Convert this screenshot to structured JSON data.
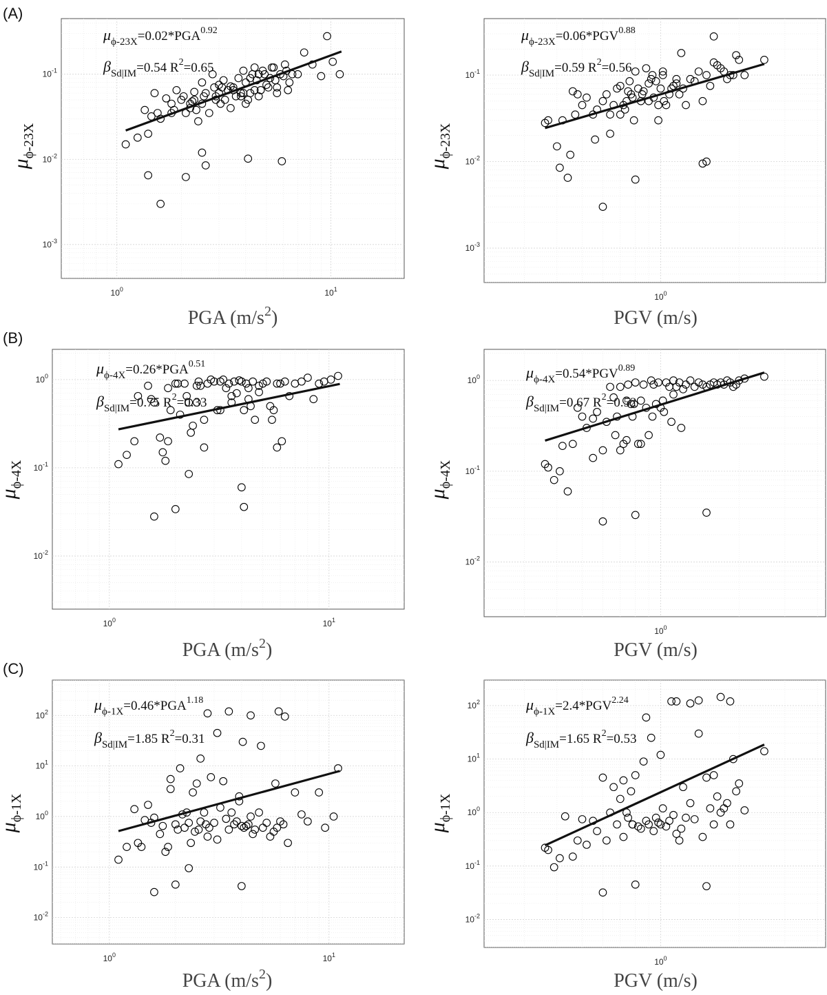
{
  "chart_data": [
    {
      "id": "A-PGA",
      "panel_label": "(A)",
      "type": "scatter",
      "xlabel_main": "PGA (m/s",
      "xlabel_sup": "2",
      "xlabel_tail": ")",
      "ylabel_mu": "μ",
      "ylabel_sub": "ϕ-23X",
      "xscale": "log",
      "yscale": "log",
      "xlim": [
        0.55,
        22
      ],
      "ylim": [
        0.0004,
        0.45
      ],
      "xticks": [
        1,
        10
      ],
      "yticks": [
        0.001,
        0.01,
        0.1
      ],
      "grid": true,
      "eq_lhs": "μ",
      "eq_lhs_sub": "ϕ-23X",
      "eq_rhs": "=0.02*PGA",
      "eq_rhs_sup": "0.92",
      "stat_beta": "β",
      "stat_beta_sub": "Sd|IM",
      "stat_beta_val": "=0.54",
      "stat_r": "R",
      "stat_r_sup": "2",
      "stat_r_val": "=0.65",
      "fit": {
        "coef": 0.02,
        "exp": 0.92,
        "x_range": [
          1.1,
          11.2
        ]
      },
      "x": [
        1.1,
        1.25,
        1.35,
        1.4,
        1.45,
        1.5,
        1.55,
        1.6,
        1.7,
        1.8,
        1.85,
        1.9,
        2.0,
        2.05,
        2.1,
        2.2,
        2.25,
        2.3,
        2.35,
        2.4,
        2.5,
        2.5,
        2.55,
        2.6,
        2.7,
        2.8,
        2.85,
        2.9,
        3.0,
        3.05,
        3.1,
        3.15,
        3.2,
        3.3,
        3.4,
        3.5,
        3.6,
        3.7,
        3.8,
        3.9,
        4.0,
        4.0,
        4.1,
        4.2,
        4.3,
        4.4,
        4.5,
        4.6,
        4.7,
        4.8,
        5.0,
        5.2,
        5.4,
        5.6,
        5.8,
        6.0,
        6.2,
        6.4,
        6.6,
        7.0,
        7.5,
        8.2,
        9.0,
        9.6,
        10.2,
        11.0,
        1.4,
        2.1,
        2.5,
        4.1,
        5.9,
        1.6,
        2.6,
        3.4,
        4.4,
        5.3,
        6.1,
        2.2,
        3.8,
        4.9,
        1.8,
        3.0,
        5.6,
        2.9,
        3.5,
        4.2,
        5.5,
        6.3,
        2.3,
        3.9,
        4.6,
        5.1
      ],
      "y": [
        0.015,
        0.018,
        0.038,
        0.02,
        0.032,
        0.06,
        0.035,
        0.03,
        0.052,
        0.045,
        0.038,
        0.065,
        0.05,
        0.055,
        0.035,
        0.045,
        0.048,
        0.062,
        0.038,
        0.028,
        0.08,
        0.045,
        0.055,
        0.06,
        0.035,
        0.1,
        0.07,
        0.055,
        0.06,
        0.045,
        0.07,
        0.085,
        0.05,
        0.065,
        0.072,
        0.07,
        0.055,
        0.09,
        0.06,
        0.11,
        0.08,
        0.045,
        0.05,
        0.06,
        0.1,
        0.12,
        0.085,
        0.1,
        0.065,
        0.11,
        0.075,
        0.09,
        0.12,
        0.07,
        0.1,
        0.095,
        0.11,
        0.08,
        0.1,
        0.1,
        0.18,
        0.13,
        0.095,
        0.28,
        0.14,
        0.1,
        0.0065,
        0.0062,
        0.012,
        0.0102,
        0.0095,
        0.003,
        0.0085,
        0.04,
        0.065,
        0.12,
        0.13,
        0.04,
        0.055,
        0.1,
        0.035,
        0.075,
        0.06,
        0.05,
        0.065,
        0.09,
        0.085,
        0.065,
        0.05,
        0.06,
        0.055,
        0.07
      ]
    },
    {
      "id": "A-PGV",
      "panel_label": "",
      "type": "scatter",
      "xlabel_main": "PGV (m/s)",
      "xlabel_sup": "",
      "xlabel_tail": "",
      "ylabel_mu": "μ",
      "ylabel_sub": "ϕ-23X",
      "xscale": "log",
      "yscale": "log",
      "xlim": [
        0.21,
        4.3
      ],
      "ylim": [
        0.0004,
        0.45
      ],
      "xticks": [
        1
      ],
      "yticks": [
        0.001,
        0.01,
        0.1
      ],
      "grid": true,
      "eq_lhs": "μ",
      "eq_lhs_sub": "ϕ-23X",
      "eq_rhs": "=0.06*PGV",
      "eq_rhs_sup": "0.88",
      "stat_beta": "β",
      "stat_beta_sub": "Sd|IM",
      "stat_beta_val": "=0.59",
      "stat_r": "R",
      "stat_r_sup": "2",
      "stat_r_val": "=0.56",
      "fit": {
        "coef": 0.06,
        "exp": 0.88,
        "x_range": [
          0.36,
          2.5
        ]
      },
      "x": [
        0.36,
        0.37,
        0.4,
        0.42,
        0.45,
        0.46,
        0.48,
        0.5,
        0.52,
        0.55,
        0.57,
        0.6,
        0.62,
        0.64,
        0.66,
        0.68,
        0.7,
        0.72,
        0.74,
        0.75,
        0.77,
        0.78,
        0.8,
        0.82,
        0.84,
        0.86,
        0.88,
        0.9,
        0.92,
        0.94,
        0.96,
        0.98,
        1.0,
        1.02,
        1.05,
        1.08,
        1.1,
        1.12,
        1.15,
        1.18,
        1.2,
        1.25,
        1.3,
        1.35,
        1.4,
        1.45,
        1.5,
        1.55,
        1.6,
        1.65,
        1.7,
        1.75,
        1.8,
        1.85,
        1.9,
        1.95,
        2.0,
        2.1,
        2.5,
        0.41,
        0.44,
        0.56,
        0.6,
        0.64,
        0.8,
        1.45,
        1.5,
        0.47,
        0.7,
        0.76,
        0.85,
        0.93,
        1.03,
        1.22,
        1.6,
        1.02,
        0.9,
        0.73,
        0.79,
        1.15,
        0.98
      ],
      "y": [
        0.028,
        0.03,
        0.015,
        0.03,
        0.012,
        0.065,
        0.06,
        0.045,
        0.055,
        0.035,
        0.04,
        0.05,
        0.06,
        0.035,
        0.045,
        0.07,
        0.075,
        0.045,
        0.05,
        0.065,
        0.06,
        0.055,
        0.11,
        0.07,
        0.05,
        0.065,
        0.12,
        0.08,
        0.09,
        0.055,
        0.085,
        0.03,
        0.07,
        0.1,
        0.045,
        0.06,
        0.07,
        0.075,
        0.08,
        0.06,
        0.18,
        0.045,
        0.09,
        0.085,
        0.11,
        0.05,
        0.1,
        0.075,
        0.28,
        0.13,
        0.12,
        0.11,
        0.09,
        0.1,
        0.1,
        0.17,
        0.15,
        0.1,
        0.15,
        0.0085,
        0.0065,
        0.018,
        0.003,
        0.021,
        0.0062,
        0.0095,
        0.01,
        0.035,
        0.035,
        0.085,
        0.06,
        0.1,
        0.05,
        0.07,
        0.14,
        0.11,
        0.05,
        0.04,
        0.03,
        0.09,
        0.045
      ]
    },
    {
      "id": "B-PGA",
      "panel_label": "(B)",
      "type": "scatter",
      "xlabel_main": "PGA (m/s",
      "xlabel_sup": "2",
      "xlabel_tail": ")",
      "ylabel_mu": "μ",
      "ylabel_sub": "ϕ-4X",
      "xscale": "log",
      "yscale": "log",
      "xlim": [
        0.55,
        22
      ],
      "ylim": [
        0.0025,
        2.2
      ],
      "xticks": [
        1,
        10
      ],
      "yticks": [
        0.01,
        0.1,
        1
      ],
      "grid": true,
      "eq_lhs": "μ",
      "eq_lhs_sub": "ϕ-4X",
      "eq_rhs": "=0.26*PGA",
      "eq_rhs_sup": "0.51",
      "stat_beta": "β",
      "stat_beta_sub": "Sd|IM",
      "stat_beta_val": "=0.75",
      "stat_r": "R",
      "stat_r_sup": "2",
      "stat_r_val": "=0.33",
      "fit": {
        "coef": 0.26,
        "exp": 0.51,
        "x_range": [
          1.1,
          11.2
        ]
      },
      "x": [
        1.1,
        1.2,
        1.3,
        1.35,
        1.5,
        1.55,
        1.6,
        1.7,
        1.75,
        1.8,
        1.85,
        1.9,
        2.0,
        2.05,
        2.1,
        2.2,
        2.25,
        2.3,
        2.35,
        2.4,
        2.5,
        2.55,
        2.6,
        2.7,
        2.8,
        2.9,
        3.0,
        3.1,
        3.2,
        3.3,
        3.4,
        3.5,
        3.6,
        3.7,
        3.8,
        3.9,
        4.0,
        4.1,
        4.2,
        4.3,
        4.4,
        4.5,
        4.6,
        4.8,
        5.0,
        5.2,
        5.4,
        5.6,
        5.8,
        6.0,
        6.3,
        6.6,
        7.0,
        7.5,
        8.0,
        8.5,
        9.0,
        9.5,
        10.2,
        11.0,
        1.6,
        2.0,
        4.0,
        4.1,
        2.3,
        1.85,
        2.7,
        3.6,
        4.3,
        5.5,
        6.1,
        3.2,
        4.8,
        2.5,
        5.8
      ],
      "y": [
        0.11,
        0.14,
        0.2,
        0.65,
        0.85,
        0.6,
        0.55,
        0.22,
        0.15,
        0.12,
        0.8,
        0.45,
        0.9,
        0.9,
        0.4,
        0.9,
        0.65,
        0.55,
        0.25,
        0.3,
        0.85,
        0.95,
        0.85,
        0.35,
        0.9,
        1.0,
        0.95,
        0.45,
        0.95,
        1.0,
        0.8,
        0.9,
        0.55,
        0.95,
        0.7,
        0.98,
        0.95,
        0.45,
        0.9,
        0.6,
        0.5,
        0.95,
        0.35,
        0.85,
        0.9,
        0.95,
        0.5,
        0.45,
        0.9,
        0.9,
        0.95,
        0.65,
        0.9,
        0.95,
        1.05,
        0.6,
        0.9,
        0.95,
        1.0,
        1.1,
        0.028,
        0.034,
        0.06,
        0.036,
        0.085,
        0.2,
        0.17,
        0.65,
        0.8,
        0.35,
        0.2,
        0.45,
        0.72,
        0.55,
        0.17
      ]
    },
    {
      "id": "B-PGV",
      "panel_label": "",
      "type": "scatter",
      "xlabel_main": "PGV (m/s)",
      "xlabel_sup": "",
      "xlabel_tail": "",
      "ylabel_mu": "μ",
      "ylabel_sub": "ϕ-4X",
      "xscale": "log",
      "yscale": "log",
      "xlim": [
        0.21,
        4.3
      ],
      "ylim": [
        0.0025,
        2.2
      ],
      "xticks": [
        1
      ],
      "yticks": [
        0.01,
        0.1,
        1
      ],
      "grid": true,
      "eq_lhs": "μ",
      "eq_lhs_sub": "ϕ-4X",
      "eq_rhs": "=0.54*PGV",
      "eq_rhs_sup": "0.89",
      "stat_beta": "β",
      "stat_beta_sub": "Sd|IM",
      "stat_beta_val": "=0.67",
      "stat_r": "R",
      "stat_r_sup": "2",
      "stat_r_val": "=0.52",
      "fit": {
        "coef": 0.54,
        "exp": 0.89,
        "x_range": [
          0.36,
          2.5
        ]
      },
      "x": [
        0.36,
        0.37,
        0.39,
        0.41,
        0.44,
        0.46,
        0.48,
        0.5,
        0.52,
        0.55,
        0.57,
        0.6,
        0.62,
        0.64,
        0.66,
        0.68,
        0.7,
        0.72,
        0.74,
        0.75,
        0.77,
        0.78,
        0.8,
        0.82,
        0.84,
        0.86,
        0.88,
        0.9,
        0.92,
        0.94,
        0.96,
        0.98,
        1.0,
        1.02,
        1.05,
        1.08,
        1.1,
        1.12,
        1.15,
        1.18,
        1.2,
        1.25,
        1.3,
        1.35,
        1.4,
        1.45,
        1.5,
        1.55,
        1.6,
        1.65,
        1.7,
        1.75,
        1.8,
        1.85,
        1.9,
        1.95,
        2.0,
        2.1,
        2.5,
        0.42,
        0.6,
        0.8,
        1.5,
        0.7,
        0.74,
        0.84,
        0.93,
        1.03,
        1.22,
        0.55,
        0.67,
        0.79,
        1.12
      ],
      "y": [
        0.12,
        0.11,
        0.08,
        0.1,
        0.06,
        0.2,
        0.5,
        0.4,
        0.3,
        0.14,
        0.45,
        0.17,
        0.35,
        0.85,
        0.65,
        0.4,
        0.85,
        0.2,
        0.6,
        0.9,
        0.55,
        0.4,
        0.95,
        0.2,
        0.6,
        0.9,
        0.5,
        0.25,
        1.0,
        0.9,
        0.55,
        0.95,
        0.5,
        0.6,
        0.95,
        0.85,
        0.35,
        1.0,
        0.85,
        0.95,
        0.3,
        0.9,
        1.0,
        0.85,
        0.95,
        0.9,
        0.85,
        0.9,
        0.95,
        0.9,
        0.95,
        0.9,
        1.0,
        0.95,
        0.85,
        0.9,
        1.0,
        1.05,
        1.1,
        0.19,
        0.028,
        0.033,
        0.035,
        0.17,
        0.22,
        0.2,
        0.4,
        0.45,
        0.8,
        0.38,
        0.25,
        0.55,
        0.7
      ]
    },
    {
      "id": "C-PGA",
      "panel_label": "(C)",
      "type": "scatter",
      "xlabel_main": "PGA (m/s",
      "xlabel_sup": "2",
      "xlabel_tail": ")",
      "ylabel_mu": "μ",
      "ylabel_sub": "ϕ-1X",
      "xscale": "log",
      "yscale": "log",
      "xlim": [
        0.55,
        22
      ],
      "ylim": [
        0.003,
        500
      ],
      "xticks": [
        1,
        10
      ],
      "yticks": [
        0.01,
        0.1,
        1,
        10,
        100
      ],
      "grid": true,
      "eq_lhs": "μ",
      "eq_lhs_sub": "ϕ-1X",
      "eq_rhs": "=0.46*PGA",
      "eq_rhs_sup": "1.18",
      "stat_beta": "β",
      "stat_beta_sub": "Sd|IM",
      "stat_beta_val": "=1.85",
      "stat_r": "R",
      "stat_r_sup": "2",
      "stat_r_val": "=0.31",
      "fit": {
        "coef": 0.46,
        "exp": 1.18,
        "x_range": [
          1.1,
          11.2
        ]
      },
      "x": [
        1.1,
        1.2,
        1.3,
        1.35,
        1.4,
        1.45,
        1.5,
        1.55,
        1.6,
        1.7,
        1.75,
        1.8,
        1.85,
        1.9,
        2.0,
        2.05,
        2.1,
        2.15,
        2.2,
        2.25,
        2.3,
        2.35,
        2.4,
        2.45,
        2.5,
        2.55,
        2.6,
        2.7,
        2.75,
        2.8,
        2.85,
        2.9,
        3.0,
        3.1,
        3.2,
        3.3,
        3.4,
        3.5,
        3.6,
        3.7,
        3.8,
        3.9,
        4.0,
        4.05,
        4.1,
        4.2,
        4.3,
        4.4,
        4.5,
        4.6,
        4.8,
        5.0,
        5.2,
        5.4,
        5.6,
        5.8,
        6.0,
        6.2,
        6.5,
        7.0,
        7.5,
        8.0,
        9.0,
        9.6,
        10.5,
        11.0,
        1.6,
        2.0,
        2.3,
        4.0,
        2.8,
        3.5,
        4.4,
        5.9,
        6.3,
        1.9,
        3.1,
        4.9,
        5.7,
        2.6,
        3.9
      ],
      "y": [
        0.14,
        0.25,
        1.4,
        0.3,
        0.25,
        0.85,
        1.7,
        0.75,
        0.95,
        0.45,
        0.65,
        0.2,
        0.25,
        5.5,
        0.7,
        0.55,
        9.0,
        1.1,
        0.6,
        1.2,
        0.75,
        0.3,
        3.0,
        0.5,
        4.5,
        0.55,
        0.8,
        1.2,
        0.7,
        0.4,
        0.6,
        6.0,
        0.75,
        0.35,
        1.5,
        5.0,
        0.9,
        0.55,
        1.2,
        0.7,
        0.8,
        2.5,
        0.65,
        30.0,
        0.6,
        0.65,
        0.7,
        1.0,
        0.45,
        0.55,
        1.2,
        0.6,
        0.75,
        0.4,
        0.5,
        0.6,
        0.8,
        0.7,
        0.3,
        3.0,
        1.1,
        0.8,
        3.0,
        0.6,
        1.0,
        9.0,
        0.032,
        0.045,
        0.095,
        0.042,
        110,
        120,
        100,
        120,
        95,
        3.5,
        45,
        25,
        4.5,
        14,
        2.0
      ]
    },
    {
      "id": "C-PGV",
      "panel_label": "",
      "type": "scatter",
      "xlabel_main": "PGV (m/s)",
      "xlabel_sup": "",
      "xlabel_tail": "",
      "ylabel_mu": "μ",
      "ylabel_sub": "ϕ-1X",
      "xscale": "log",
      "yscale": "log",
      "xlim": [
        0.21,
        4.3
      ],
      "ylim": [
        0.003,
        300
      ],
      "xticks": [
        1
      ],
      "yticks": [
        0.01,
        0.1,
        1,
        10,
        100
      ],
      "grid": true,
      "eq_lhs": "μ",
      "eq_lhs_sub": "ϕ-1X",
      "eq_rhs": "=2.4*PGV",
      "eq_rhs_sup": "2.24",
      "stat_beta": "β",
      "stat_beta_sub": "Sd|IM",
      "stat_beta_val": "=1.65",
      "stat_r": "R",
      "stat_r_sup": "2",
      "stat_r_val": "=0.53",
      "fit": {
        "coef": 2.4,
        "exp": 2.24,
        "x_range": [
          0.36,
          2.5
        ]
      },
      "x": [
        0.36,
        0.37,
        0.39,
        0.41,
        0.43,
        0.46,
        0.48,
        0.5,
        0.52,
        0.55,
        0.57,
        0.6,
        0.62,
        0.64,
        0.66,
        0.68,
        0.7,
        0.72,
        0.74,
        0.75,
        0.77,
        0.78,
        0.8,
        0.82,
        0.84,
        0.86,
        0.88,
        0.9,
        0.92,
        0.94,
        0.96,
        0.98,
        1.0,
        1.02,
        1.05,
        1.08,
        1.1,
        1.12,
        1.15,
        1.18,
        1.2,
        1.25,
        1.3,
        1.35,
        1.4,
        1.45,
        1.5,
        1.55,
        1.6,
        1.65,
        1.7,
        1.75,
        1.8,
        1.85,
        1.9,
        1.95,
        2.0,
        2.1,
        2.5,
        0.6,
        0.8,
        1.5,
        1.15,
        1.3,
        1.4,
        1.7,
        1.85,
        1.0,
        0.88,
        0.72,
        0.78,
        1.22,
        1.6
      ],
      "y": [
        0.22,
        0.2,
        0.095,
        0.14,
        0.85,
        0.15,
        0.3,
        0.75,
        0.25,
        0.7,
        0.45,
        4.5,
        0.3,
        1.0,
        3.0,
        0.6,
        1.8,
        0.35,
        1.0,
        0.8,
        2.5,
        0.6,
        5.0,
        0.55,
        0.5,
        9.0,
        0.7,
        0.6,
        25,
        0.45,
        0.8,
        0.65,
        0.6,
        1.2,
        0.55,
        0.7,
        120,
        0.9,
        0.4,
        0.3,
        0.5,
        0.8,
        1.5,
        0.75,
        30,
        0.35,
        4.5,
        1.2,
        0.6,
        2.0,
        1.0,
        1.2,
        1.5,
        0.6,
        10,
        2.5,
        3.5,
        1.1,
        14,
        0.032,
        0.045,
        0.042,
        120,
        110,
        125,
        145,
        120,
        12,
        60,
        4.0,
        0.6,
        3.0,
        5.0
      ]
    }
  ]
}
